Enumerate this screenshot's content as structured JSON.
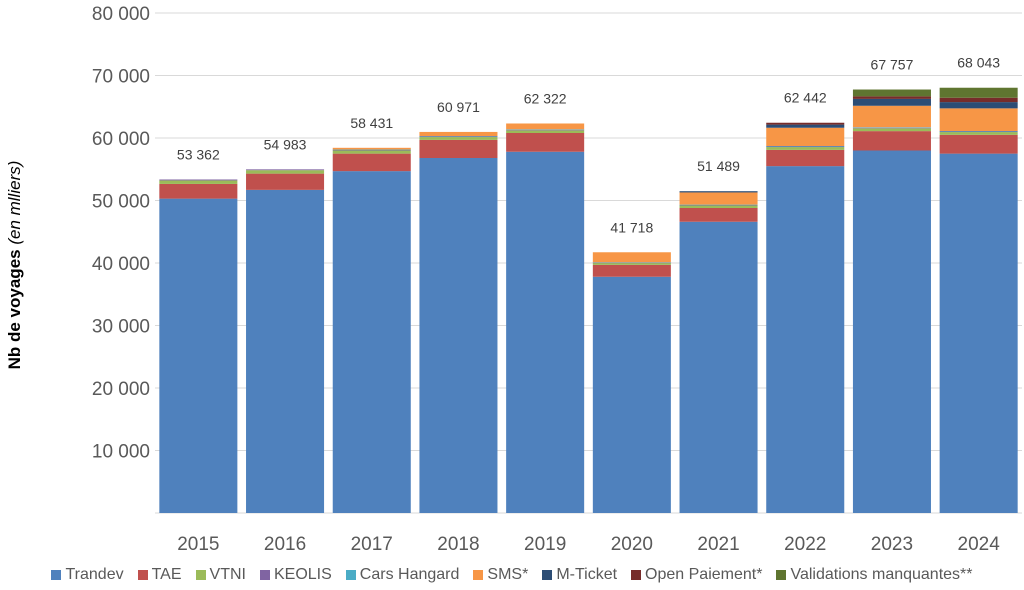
{
  "chart_data": {
    "type": "bar",
    "stacked": true,
    "title": "",
    "xlabel": "",
    "ylabel": "Nb de voyages",
    "ylabel_italic": "(en mlliers)",
    "ylim": [
      0,
      80000
    ],
    "yticks": [
      10000,
      20000,
      30000,
      40000,
      50000,
      60000,
      70000,
      80000
    ],
    "ytick_labels": [
      "10 000",
      "20 000",
      "30 000",
      "40 000",
      "50 000",
      "60 000",
      "70 000",
      "80 000"
    ],
    "grid": true,
    "legend_position": "bottom",
    "categories": [
      "2015",
      "2016",
      "2017",
      "2018",
      "2019",
      "2020",
      "2021",
      "2022",
      "2023",
      "2024"
    ],
    "totals": [
      53362,
      54983,
      58431,
      60971,
      62322,
      41718,
      51489,
      62442,
      67757,
      68043
    ],
    "total_labels": [
      "53 362",
      "54 983",
      "58 431",
      "60 971",
      "62 322",
      "41 718",
      "51 489",
      "62 442",
      "67 757",
      "68 043"
    ],
    "series": [
      {
        "name": "Trandev",
        "color": "#4f81bd",
        "values": [
          50300,
          51700,
          54700,
          56800,
          57800,
          37800,
          46600,
          55500,
          58000,
          57500
        ]
      },
      {
        "name": "TAE",
        "color": "#c0504d",
        "values": [
          2350,
          2600,
          2800,
          2900,
          3000,
          1900,
          2200,
          2600,
          3100,
          3000
        ]
      },
      {
        "name": "VTNI",
        "color": "#9bbb59",
        "values": [
          560,
          550,
          500,
          450,
          420,
          300,
          400,
          450,
          450,
          450
        ]
      },
      {
        "name": "KEOLIS",
        "color": "#8064a2",
        "values": [
          152,
          133,
          100,
          100,
          90,
          60,
          80,
          90,
          90,
          90
        ]
      },
      {
        "name": "Cars Hangard",
        "color": "#4bacc6",
        "values": [
          0,
          0,
          51,
          60,
          70,
          50,
          60,
          80,
          80,
          80
        ]
      },
      {
        "name": "SMS*",
        "color": "#f79646",
        "values": [
          0,
          0,
          280,
          661,
          942,
          1608,
          1949,
          2922,
          3437,
          3623
        ]
      },
      {
        "name": "M-Ticket",
        "color": "#2c4d75",
        "values": [
          0,
          0,
          0,
          0,
          0,
          0,
          200,
          500,
          1100,
          1000
        ]
      },
      {
        "name": "Open Paiement*",
        "color": "#772c2a",
        "values": [
          0,
          0,
          0,
          0,
          0,
          0,
          0,
          300,
          400,
          700
        ]
      },
      {
        "name": "Validations manquantes**",
        "color": "#5f7530",
        "values": [
          0,
          0,
          0,
          0,
          0,
          0,
          0,
          0,
          1100,
          1600
        ]
      }
    ],
    "colors": {
      "gridline": "#d9d9d9",
      "axis_text": "#595959"
    }
  }
}
